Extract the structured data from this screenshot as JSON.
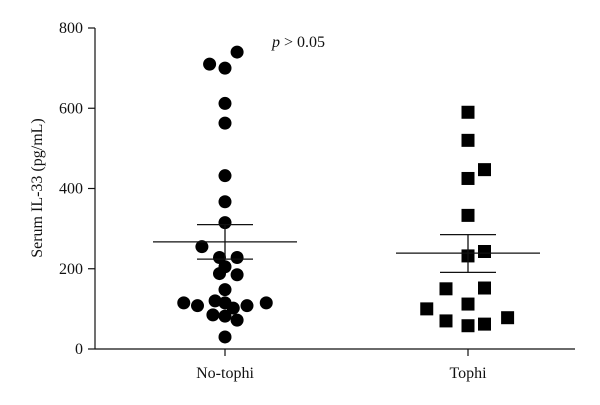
{
  "chart_data": {
    "type": "scatter",
    "title": "",
    "xlabel": "",
    "ylabel": "Serum IL-33 (pg/mL)",
    "ylim": [
      0,
      800
    ],
    "yticks": [
      "0",
      "200",
      "400",
      "600",
      "800"
    ],
    "categories": [
      "No-tophi",
      "Tophi"
    ],
    "annotation": {
      "p_symbol": "p",
      "rest": " > 0.05"
    },
    "grid": false,
    "legend": "none",
    "series": [
      {
        "category": "No-tophi",
        "marker": "circle",
        "points": [
          {
            "offset": -0.28,
            "y": 710
          },
          {
            "offset": 0.0,
            "y": 700
          },
          {
            "offset": 0.22,
            "y": 740
          },
          {
            "offset": 0.0,
            "y": 612
          },
          {
            "offset": 0.0,
            "y": 563
          },
          {
            "offset": 0.0,
            "y": 432
          },
          {
            "offset": 0.0,
            "y": 367
          },
          {
            "offset": 0.0,
            "y": 315
          },
          {
            "offset": -0.42,
            "y": 255
          },
          {
            "offset": -0.1,
            "y": 228
          },
          {
            "offset": 0.22,
            "y": 228
          },
          {
            "offset": -0.1,
            "y": 188
          },
          {
            "offset": 0.0,
            "y": 205
          },
          {
            "offset": 0.22,
            "y": 185
          },
          {
            "offset": 0.0,
            "y": 148
          },
          {
            "offset": -0.75,
            "y": 115
          },
          {
            "offset": -0.5,
            "y": 108
          },
          {
            "offset": -0.18,
            "y": 120
          },
          {
            "offset": 0.0,
            "y": 115
          },
          {
            "offset": 0.15,
            "y": 102
          },
          {
            "offset": 0.4,
            "y": 108
          },
          {
            "offset": 0.75,
            "y": 115
          },
          {
            "offset": -0.22,
            "y": 85
          },
          {
            "offset": 0.0,
            "y": 82
          },
          {
            "offset": 0.22,
            "y": 72
          },
          {
            "offset": 0.0,
            "y": 30
          }
        ],
        "mean": 267,
        "sem_upper": 310,
        "sem_lower": 224
      },
      {
        "category": "Tophi",
        "marker": "square",
        "points": [
          {
            "offset": 0.0,
            "y": 590
          },
          {
            "offset": 0.0,
            "y": 520
          },
          {
            "offset": 0.0,
            "y": 425
          },
          {
            "offset": 0.3,
            "y": 447
          },
          {
            "offset": 0.0,
            "y": 333
          },
          {
            "offset": 0.3,
            "y": 243
          },
          {
            "offset": 0.0,
            "y": 232
          },
          {
            "offset": -0.4,
            "y": 150
          },
          {
            "offset": 0.3,
            "y": 152
          },
          {
            "offset": 0.0,
            "y": 112
          },
          {
            "offset": -0.75,
            "y": 100
          },
          {
            "offset": -0.4,
            "y": 70
          },
          {
            "offset": 0.0,
            "y": 58
          },
          {
            "offset": 0.3,
            "y": 62
          },
          {
            "offset": 0.72,
            "y": 78
          }
        ],
        "mean": 239,
        "sem_upper": 285,
        "sem_lower": 191
      }
    ]
  }
}
